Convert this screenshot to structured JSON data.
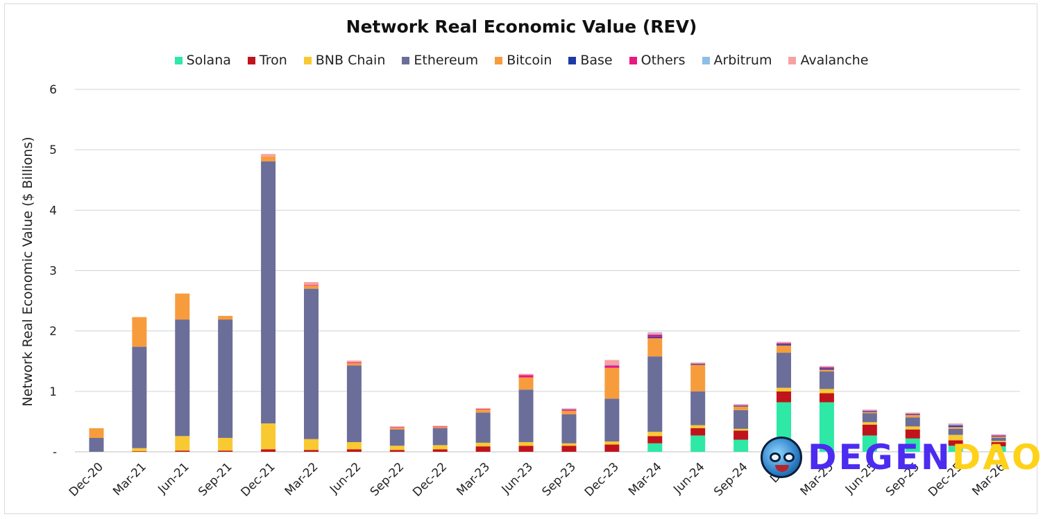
{
  "chart_data": {
    "type": "bar",
    "stacked": true,
    "title": "Network Real Economic Value (REV)",
    "ylabel": "Network Real Economic Value ($ Billions)",
    "xlabel": "",
    "ylim": [
      0,
      6
    ],
    "yticks": [
      {
        "value": 0,
        "label": "-"
      },
      {
        "value": 1,
        "label": "1"
      },
      {
        "value": 2,
        "label": "2"
      },
      {
        "value": 3,
        "label": "3"
      },
      {
        "value": 4,
        "label": "4"
      },
      {
        "value": 5,
        "label": "5"
      },
      {
        "value": 6,
        "label": "6"
      }
    ],
    "grid": true,
    "legend_position": "top",
    "categories": [
      "Dec-20",
      "Mar-21",
      "Jun-21",
      "Sep-21",
      "Dec-21",
      "Mar-22",
      "Jun-22",
      "Sep-22",
      "Dec-22",
      "Mar-23",
      "Jun-23",
      "Sep-23",
      "Dec-23",
      "Mar-24",
      "Jun-24",
      "Sep-24",
      "Dec-24",
      "Mar-25",
      "Jun-25",
      "Sep-25",
      "Dec-25",
      "Mar-26"
    ],
    "xtick_labels": [
      "Dec-20",
      "Mar-21",
      "Jun-21",
      "Sep-21",
      "Dec-21",
      "Mar-22",
      "Jun-22",
      "Sep-22",
      "Dec-22",
      "Mar-23",
      "Jun-23",
      "Sep-23",
      "Dec-23",
      "Mar-24",
      "Jun-24",
      "Sep-24",
      "Dec",
      "Mar-25",
      "Jun-25",
      "Sep-25",
      "Dec-25",
      "Mar-26"
    ],
    "series": [
      {
        "name": "Solana",
        "color": "#2ee8a6",
        "values": [
          0,
          0,
          0,
          0,
          0,
          0,
          0,
          0,
          0,
          0,
          0,
          0,
          0,
          0.14,
          0.27,
          0.2,
          0.82,
          0.82,
          0.27,
          0.22,
          0.1,
          0.09
        ]
      },
      {
        "name": "Tron",
        "color": "#c0141c",
        "values": [
          0,
          0.01,
          0.02,
          0.02,
          0.04,
          0.03,
          0.04,
          0.03,
          0.04,
          0.09,
          0.1,
          0.1,
          0.12,
          0.12,
          0.12,
          0.15,
          0.18,
          0.15,
          0.18,
          0.15,
          0.09,
          0.07
        ]
      },
      {
        "name": "BNB Chain",
        "color": "#f9c932",
        "values": [
          0,
          0.05,
          0.24,
          0.21,
          0.43,
          0.18,
          0.12,
          0.07,
          0.07,
          0.06,
          0.06,
          0.04,
          0.05,
          0.07,
          0.05,
          0.03,
          0.06,
          0.07,
          0.04,
          0.05,
          0.09,
          0.02
        ]
      },
      {
        "name": "Ethereum",
        "color": "#6b6e99",
        "values": [
          0.23,
          1.68,
          1.93,
          1.96,
          4.34,
          2.49,
          1.27,
          0.27,
          0.28,
          0.5,
          0.87,
          0.48,
          0.71,
          1.25,
          0.56,
          0.31,
          0.58,
          0.29,
          0.15,
          0.15,
          0.1,
          0.05
        ]
      },
      {
        "name": "Bitcoin",
        "color": "#f79c3c",
        "values": [
          0.16,
          0.49,
          0.43,
          0.06,
          0.08,
          0.05,
          0.04,
          0.03,
          0.02,
          0.05,
          0.2,
          0.06,
          0.51,
          0.3,
          0.44,
          0.06,
          0.12,
          0.03,
          0.02,
          0.04,
          0.03,
          0.02
        ]
      },
      {
        "name": "Base",
        "color": "#1c3ba8",
        "values": [
          0,
          0,
          0,
          0,
          0,
          0,
          0,
          0,
          0,
          0,
          0,
          0,
          0,
          0.02,
          0.01,
          0.01,
          0.02,
          0.02,
          0.01,
          0.01,
          0.02,
          0.01
        ]
      },
      {
        "name": "Others",
        "color": "#e8197f",
        "values": [
          0,
          0,
          0,
          0,
          0,
          0.01,
          0.01,
          0.01,
          0.01,
          0.01,
          0.04,
          0.02,
          0.04,
          0.04,
          0.01,
          0.01,
          0.02,
          0.02,
          0.01,
          0.01,
          0.01,
          0.01
        ]
      },
      {
        "name": "Arbitrum",
        "color": "#8fbde8",
        "values": [
          0,
          0,
          0,
          0,
          0,
          0,
          0,
          0,
          0,
          0,
          0,
          0.01,
          0.01,
          0.02,
          0.01,
          0.01,
          0.01,
          0.01,
          0.01,
          0.01,
          0.02,
          0.01
        ]
      },
      {
        "name": "Avalanche",
        "color": "#f7a1a1",
        "values": [
          0,
          0,
          0,
          0,
          0.04,
          0.05,
          0.03,
          0.01,
          0.01,
          0.01,
          0.02,
          0.01,
          0.08,
          0.02,
          0.01,
          0.01,
          0.01,
          0.01,
          0.01,
          0.01,
          0.01,
          0.01
        ]
      }
    ]
  },
  "watermark": {
    "text_a": "DEGEN",
    "text_b": "DAO!"
  }
}
